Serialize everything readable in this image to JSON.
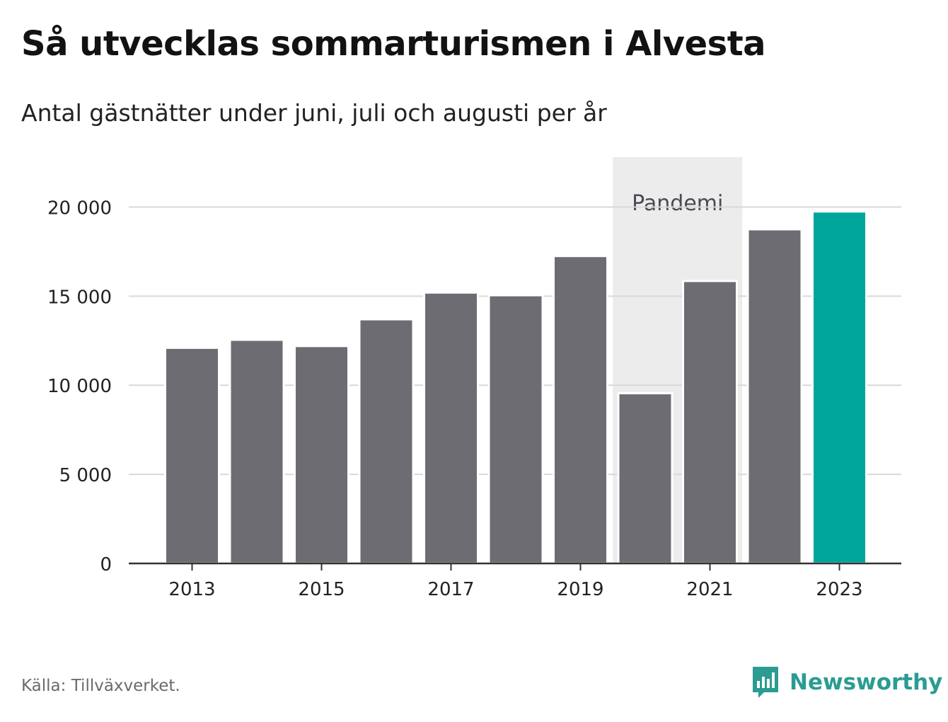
{
  "header": {
    "title": "Så utvecklas sommarturismen i Alvesta",
    "subtitle": "Antal gästnätter under juni, juli och augusti per år"
  },
  "footer": {
    "source": "Källa: Tillväxverket.",
    "brand": "Newsworthy",
    "brand_icon": "bar-chart-speech-bubble-icon"
  },
  "colors": {
    "bar": "#6d6c73",
    "highlight": "#00a59b",
    "pandemic_band": "#ececec",
    "grid": "#d9d9d9",
    "axis": "#333333",
    "brand": "#2a9c92"
  },
  "chart_data": {
    "type": "bar",
    "categories": [
      "2013",
      "2014",
      "2015",
      "2016",
      "2017",
      "2018",
      "2019",
      "2020",
      "2021",
      "2022",
      "2023"
    ],
    "values": [
      12100,
      12550,
      12200,
      13700,
      15200,
      15050,
      17250,
      9550,
      15850,
      18750,
      19750
    ],
    "highlight": "2023",
    "x_tick_labels": [
      "2013",
      "2015",
      "2017",
      "2019",
      "2021",
      "2023"
    ],
    "y_ticks": [
      0,
      5000,
      10000,
      15000,
      20000
    ],
    "y_tick_labels": [
      "0",
      "5 000",
      "10 000",
      "15 000",
      "20 000"
    ],
    "ylim": [
      0,
      22800
    ],
    "grid": true,
    "annotation": {
      "label": "Pandemi",
      "from": "2020",
      "to": "2021"
    }
  }
}
